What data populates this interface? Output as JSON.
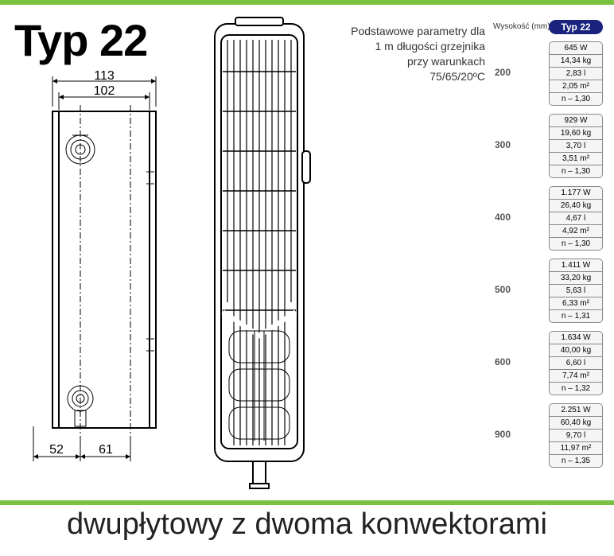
{
  "title": "Typ 22",
  "description": {
    "line1": "Podstawowe parametry dla",
    "line2": "1 m długości grzejnika",
    "line3": "przy warunkach",
    "line4": "75/65/20ºC"
  },
  "params_header": "Wysokość (mm)",
  "typ_badge": "Typ 22",
  "footer": "dwupłytowy z dwoma konwektorami",
  "side_dims": {
    "w_outer": "113",
    "w_inner": "102",
    "b_left": "52",
    "b_right": "61"
  },
  "colors": {
    "green": "#7ac142",
    "badge_bg": "#1a237e",
    "cell_bg": "#f5f5f5",
    "cell_border": "#888888",
    "text": "#000000"
  },
  "heights": [
    {
      "h": "200",
      "cells": [
        "645 W",
        "14,34 kg",
        "2,83 l",
        "2,05 m²",
        "n – 1,30"
      ]
    },
    {
      "h": "300",
      "cells": [
        "929 W",
        "19,60 kg",
        "3,70 l",
        "3,51 m²",
        "n – 1,30"
      ]
    },
    {
      "h": "400",
      "cells": [
        "1.177 W",
        "26,40 kg",
        "4,67 l",
        "4,92 m²",
        "n – 1,30"
      ]
    },
    {
      "h": "500",
      "cells": [
        "1.411 W",
        "33,20 kg",
        "5,63 l",
        "6,33 m²",
        "n – 1,31"
      ]
    },
    {
      "h": "600",
      "cells": [
        "1.634 W",
        "40,00 kg",
        "6,60 l",
        "7,74 m²",
        "n – 1,32"
      ]
    },
    {
      "h": "900",
      "cells": [
        "2.251 W",
        "60,40 kg",
        "9,70 l",
        "11,97 m²",
        "n – 1,35"
      ]
    }
  ],
  "chart_style": {
    "type": "technical-diagram",
    "stroke_main": 2,
    "stroke_thin": 1,
    "font_title_pt": 56,
    "font_footer_pt": 38,
    "font_table_pt": 10,
    "aspect": "772x699"
  }
}
